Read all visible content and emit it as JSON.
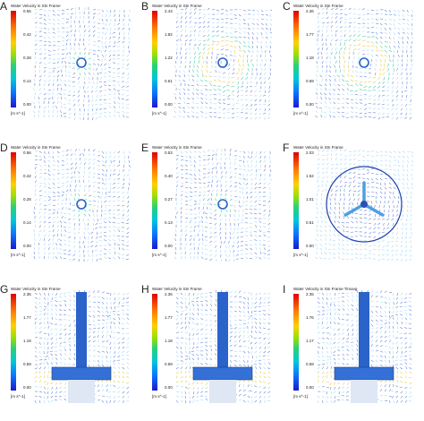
{
  "panels": [
    {
      "id": "A",
      "letter": "A",
      "title": "Water Velocity in Stn Frame",
      "ticks": [
        "0.55",
        "0.42",
        "0.28",
        "0.14",
        "0.00"
      ],
      "unit": "[m s^-1]",
      "kind": "top-mixed"
    },
    {
      "id": "B",
      "letter": "B",
      "title": "Water Velocity in Stn Frame",
      "ticks": [
        "2.43",
        "1.82",
        "1.22",
        "0.61",
        "0.00"
      ],
      "unit": "[m s^-1]",
      "kind": "top-ring"
    },
    {
      "id": "C",
      "letter": "C",
      "title": "Water Velocity in Stn Frame",
      "ticks": [
        "2.36",
        "1.77",
        "1.18",
        "0.59",
        "0.00"
      ],
      "unit": "[m s^-1]",
      "kind": "top-ring"
    },
    {
      "id": "D",
      "letter": "D",
      "title": "Water Velocity in Stn Frame",
      "ticks": [
        "0.56",
        "0.42",
        "0.28",
        "0.14",
        "0.00"
      ],
      "unit": "[m s^-1]",
      "kind": "top-mixed"
    },
    {
      "id": "E",
      "letter": "E",
      "title": "Water Velocity in Stn Frame",
      "ticks": [
        "0.53",
        "0.40",
        "0.27",
        "0.13",
        "0.00"
      ],
      "unit": "[m s^-1]",
      "kind": "top-mixed"
    },
    {
      "id": "F",
      "letter": "F",
      "title": "Water Velocity in Stn Frame",
      "ticks": [
        "2.03",
        "1.52",
        "1.01",
        "0.51",
        "0.00"
      ],
      "unit": "[m s^-1]",
      "kind": "top-impeller"
    },
    {
      "id": "G",
      "letter": "G",
      "title": "Water Velocity in Stn Frame",
      "ticks": [
        "2.35",
        "1.77",
        "1.18",
        "0.59",
        "0.00"
      ],
      "unit": "[m s^-1]",
      "kind": "side"
    },
    {
      "id": "H",
      "letter": "H",
      "title": "Water Velocity in Stn Frame",
      "ticks": [
        "2.36",
        "1.77",
        "1.18",
        "0.59",
        "0.00"
      ],
      "unit": "[m s^-1]",
      "kind": "side"
    },
    {
      "id": "I",
      "letter": "I",
      "title": "Water Velocity in Stn Frame Timavg",
      "ticks": [
        "2.35",
        "1.76",
        "1.17",
        "0.59",
        "0.00"
      ],
      "unit": "[m s^-1]",
      "kind": "side"
    }
  ],
  "colors": {
    "vector": "#5b7bd8",
    "light": "#9fd3f5",
    "mid": "#36c9a0",
    "hot": "#e6c83c",
    "shaft": "#2a63c9"
  }
}
